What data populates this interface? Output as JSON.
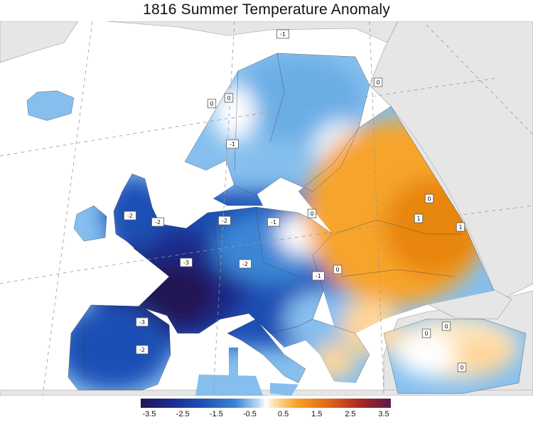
{
  "title": "1816 Summer Temperature Anomaly",
  "colors": {
    "ocean": "#ffffff",
    "land_nodata": "#e6e6e6",
    "scale": [
      "#241554",
      "#1b2a8c",
      "#1f4fb5",
      "#3a86d6",
      "#86bfee",
      "#ffffff",
      "#ffd699",
      "#f7a42a",
      "#e0651a",
      "#a9271f",
      "#5a1a4a"
    ]
  },
  "labels": [
    "-1",
    "0",
    "0",
    "0",
    "-1",
    "-2",
    "-2",
    "-2",
    "-1",
    "0",
    "1",
    "1",
    "0",
    "-3",
    "-2",
    "-1",
    "0",
    "-3",
    "0",
    "0",
    "-2",
    "0"
  ],
  "colorbar": {
    "ticks": [
      "-3.5",
      "-2.5",
      "-1.5",
      "-0.5",
      "0.5",
      "1.5",
      "2.5",
      "3.5"
    ]
  }
}
